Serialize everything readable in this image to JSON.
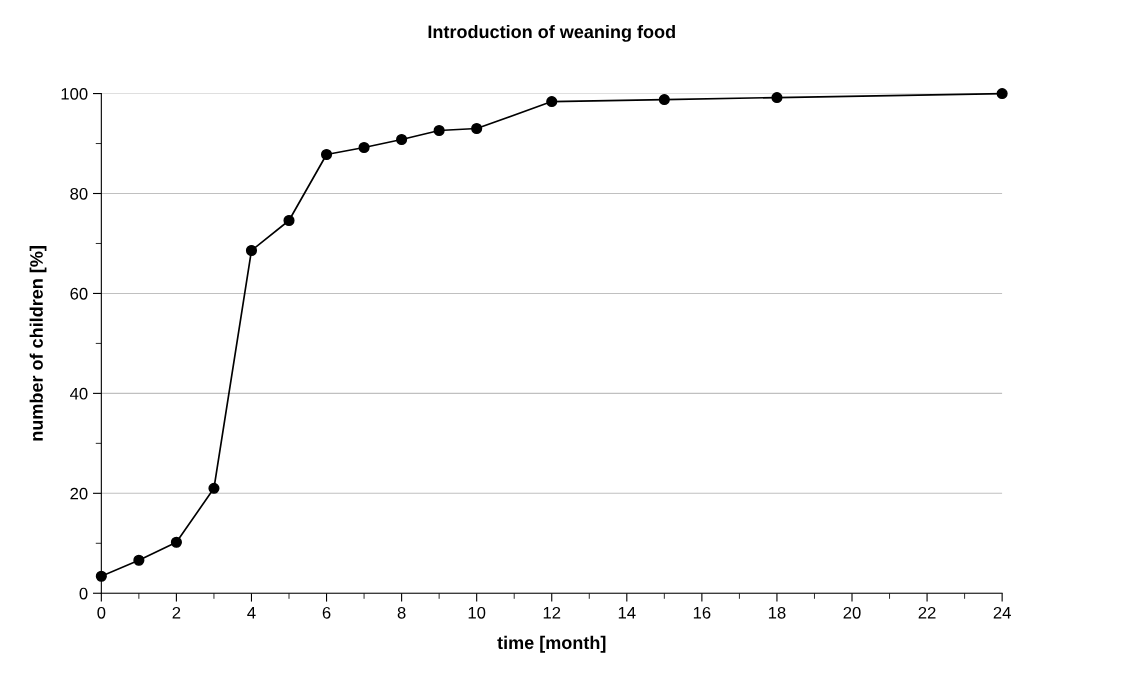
{
  "chart_data": {
    "type": "line",
    "title": "Introduction of weaning food",
    "xlabel": "time [month]",
    "ylabel": "number of children [%]",
    "x": [
      0,
      1,
      2,
      3,
      4,
      5,
      6,
      7,
      8,
      9,
      10,
      12,
      15,
      18,
      24
    ],
    "series": [
      {
        "color": "#000000",
        "values": [
          3.4,
          6.6,
          10.2,
          21,
          68.6,
          74.6,
          87.8,
          89.2,
          90.8,
          92.6,
          93,
          98.4,
          98.8,
          99.2,
          100
        ]
      }
    ],
    "xlim": [
      0,
      24
    ],
    "ylim": [
      0,
      100
    ],
    "xticks": [
      0,
      {
        "value": 1,
        "label": null
      },
      2,
      {
        "value": 3,
        "label": null
      },
      4,
      {
        "value": 5,
        "label": null
      },
      6,
      {
        "value": 7,
        "label": null
      },
      8,
      {
        "value": 9,
        "label": null
      },
      10,
      {
        "value": 11,
        "label": null
      },
      12,
      {
        "value": 13,
        "label": null
      },
      14,
      {
        "value": 15,
        "label": null
      },
      16,
      {
        "value": 17,
        "label": null
      },
      18,
      {
        "value": 19,
        "label": null
      },
      20,
      {
        "value": 21,
        "label": null
      },
      22,
      {
        "value": 23,
        "label": null
      },
      24
    ],
    "yticks": [
      0,
      {
        "value": 10,
        "label": null
      },
      20,
      {
        "value": 30,
        "label": null
      },
      40,
      {
        "value": 50,
        "label": null
      },
      60,
      {
        "value": 70,
        "label": null
      },
      80,
      {
        "value": 90,
        "label": null
      },
      100
    ],
    "grid": "y",
    "marker": "circle",
    "line_style": "solid"
  }
}
